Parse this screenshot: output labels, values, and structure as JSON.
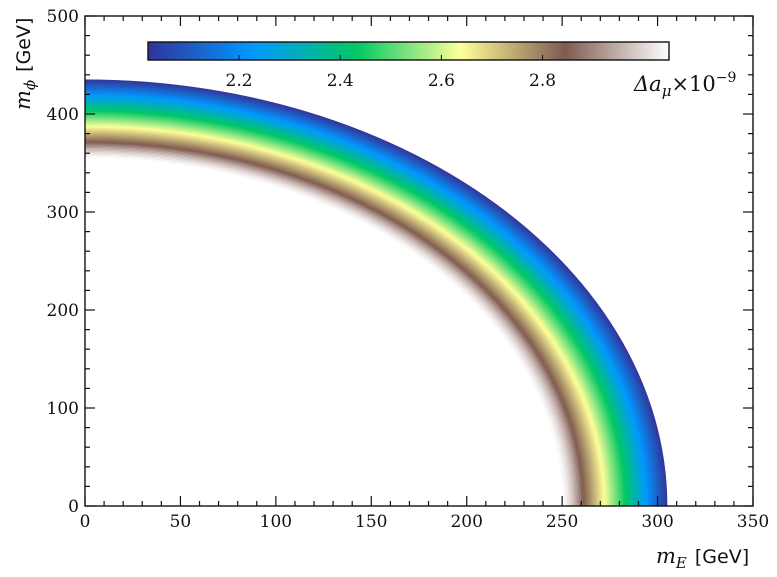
{
  "chart_data": {
    "type": "heatmap",
    "title": "",
    "xlabel": {
      "symbol": "m",
      "sub": "E",
      "unit": "[GeV]"
    },
    "ylabel": {
      "symbol": "m",
      "sub": "ϕ",
      "unit": "[GeV]"
    },
    "xlim": [
      0,
      350
    ],
    "ylim": [
      0,
      500
    ],
    "xticks": [
      0,
      50,
      100,
      150,
      200,
      250,
      300,
      350
    ],
    "yticks": [
      0,
      100,
      200,
      300,
      400,
      500
    ],
    "x_tick_labels": [
      "0",
      "50",
      "100",
      "150",
      "200",
      "250",
      "300",
      "350"
    ],
    "y_tick_labels": [
      "0",
      "100",
      "200",
      "300",
      "400",
      "500"
    ],
    "colorbar": {
      "label": {
        "prefix": "Δa",
        "sub": "μ",
        "times": "×10",
        "exp": "−9"
      },
      "range": [
        2.02,
        3.05
      ],
      "ticks": [
        2.2,
        2.4,
        2.6,
        2.8
      ],
      "tick_labels": [
        "2.2",
        "2.4",
        "2.6",
        "2.8"
      ],
      "colormap": "terrain_r",
      "placement": "top, inside axes"
    },
    "band": {
      "description": "ellipse-like band of allowed (mE, mphi) points colored by Δaμ",
      "x_intercept_outer": 305,
      "y_intercept_outer": 435,
      "x_intercept_inner": 250,
      "y_intercept_inner": 355,
      "value_at_outer_edge": 2.02,
      "value_at_inner_edge": 3.05
    },
    "grid": false
  },
  "colors": {
    "colormap_stops": [
      "#333399",
      "#0098ff",
      "#00c864",
      "#ffff99",
      "#805a50",
      "#ffffff"
    ]
  }
}
